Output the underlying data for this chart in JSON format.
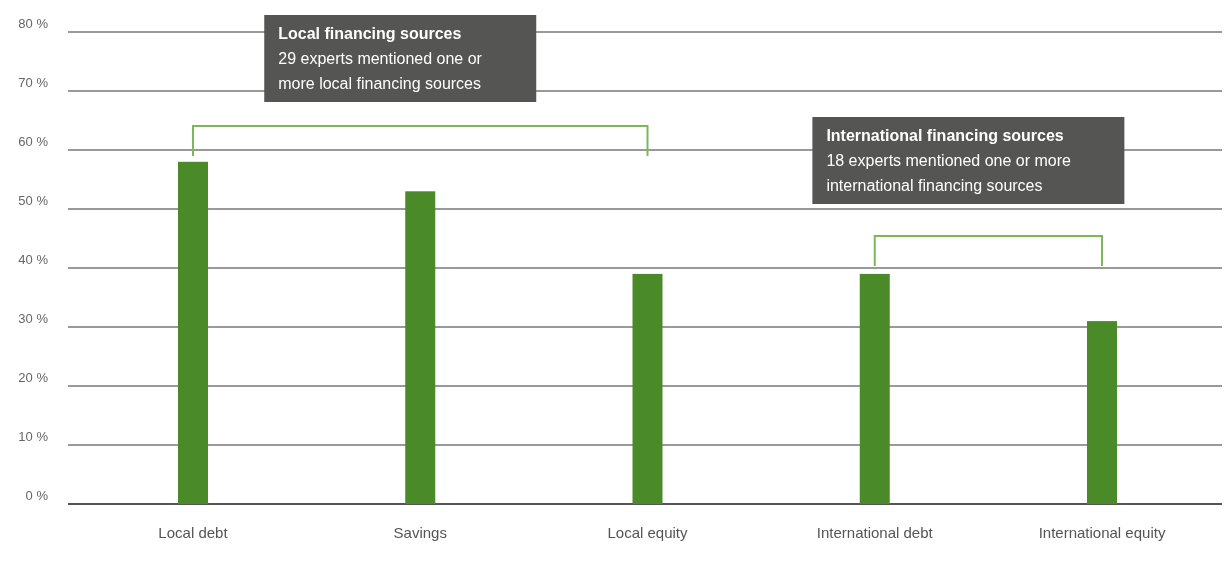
{
  "chart_data": {
    "type": "bar",
    "categories": [
      "Local debt",
      "Savings",
      "Local equity",
      "International debt",
      "International equity"
    ],
    "values": [
      58,
      53,
      39,
      39,
      31
    ],
    "color": "#4a8a28",
    "ylim": [
      0,
      80
    ],
    "yticks": [
      {
        "value": 0,
        "label": "0 %"
      },
      {
        "value": 10,
        "label": "10 %"
      },
      {
        "value": 20,
        "label": "20 %"
      },
      {
        "value": 30,
        "label": "30 %"
      },
      {
        "value": 40,
        "label": "40 %"
      },
      {
        "value": 50,
        "label": "50 %"
      },
      {
        "value": 60,
        "label": "60 %"
      },
      {
        "value": 70,
        "label": "70 %"
      },
      {
        "value": 80,
        "label": "80 %"
      }
    ],
    "grid": "y",
    "annotations": [
      "Local financing sources\n29 experts mentioned one or\nmore local financing sources",
      "International financing sources\n18 experts mentioned one or more\ninternational financing sources"
    ]
  }
}
